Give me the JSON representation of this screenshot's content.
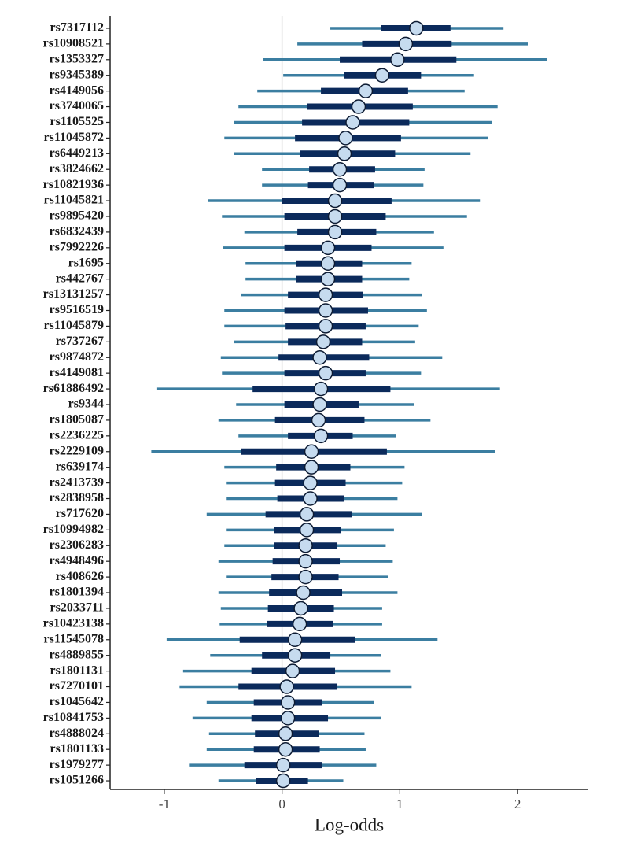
{
  "chart_data": {
    "type": "forest",
    "xlabel": "Log-odds",
    "categories": [
      "rs7317112",
      "rs10908521",
      "rs1353327",
      "rs9345389",
      "rs4149056",
      "rs3740065",
      "rs1105525",
      "rs11045872",
      "rs6449213",
      "rs3824662",
      "rs10821936",
      "rs11045821",
      "rs9895420",
      "rs6832439",
      "rs7992226",
      "rs1695",
      "rs442767",
      "rs13131257",
      "rs9516519",
      "rs11045879",
      "rs737267",
      "rs9874872",
      "rs4149081",
      "rs61886492",
      "rs9344",
      "rs1805087",
      "rs2236225",
      "rs2229109",
      "rs639174",
      "rs2413739",
      "rs2838958",
      "rs717620",
      "rs10994982",
      "rs2306283",
      "rs4948496",
      "rs408626",
      "rs1801394",
      "rs2033711",
      "rs10423138",
      "rs11545078",
      "rs4889855",
      "rs1801131",
      "rs7270101",
      "rs1045642",
      "rs10841753",
      "rs4888024",
      "rs1801133",
      "rs1979277",
      "rs1051266"
    ],
    "values": [
      1.14,
      1.05,
      0.98,
      0.85,
      0.71,
      0.65,
      0.6,
      0.54,
      0.53,
      0.49,
      0.49,
      0.45,
      0.45,
      0.45,
      0.39,
      0.39,
      0.39,
      0.37,
      0.37,
      0.37,
      0.35,
      0.32,
      0.37,
      0.33,
      0.32,
      0.31,
      0.33,
      0.25,
      0.25,
      0.24,
      0.24,
      0.21,
      0.21,
      0.2,
      0.2,
      0.2,
      0.18,
      0.16,
      0.15,
      0.11,
      0.11,
      0.09,
      0.04,
      0.05,
      0.05,
      0.03,
      0.03,
      0.01,
      0.01
    ],
    "inner_low": [
      0.84,
      0.68,
      0.49,
      0.53,
      0.33,
      0.21,
      0.17,
      0.11,
      0.15,
      0.23,
      0.22,
      0.0,
      0.02,
      0.13,
      0.02,
      0.12,
      0.12,
      0.05,
      0.02,
      0.03,
      0.05,
      -0.03,
      0.02,
      -0.25,
      0.02,
      -0.06,
      0.05,
      -0.35,
      -0.05,
      -0.06,
      -0.04,
      -0.14,
      -0.07,
      -0.07,
      -0.08,
      -0.09,
      -0.11,
      -0.12,
      -0.13,
      -0.36,
      -0.17,
      -0.26,
      -0.37,
      -0.24,
      -0.26,
      -0.23,
      -0.24,
      -0.32,
      -0.22
    ],
    "inner_high": [
      1.43,
      1.44,
      1.48,
      1.18,
      1.07,
      1.11,
      1.08,
      1.01,
      0.96,
      0.79,
      0.78,
      0.93,
      0.88,
      0.8,
      0.76,
      0.68,
      0.68,
      0.69,
      0.73,
      0.71,
      0.68,
      0.74,
      0.71,
      0.92,
      0.65,
      0.7,
      0.6,
      0.89,
      0.58,
      0.54,
      0.53,
      0.59,
      0.5,
      0.47,
      0.49,
      0.48,
      0.51,
      0.44,
      0.43,
      0.62,
      0.41,
      0.45,
      0.47,
      0.34,
      0.39,
      0.31,
      0.32,
      0.34,
      0.22
    ],
    "outer_low": [
      0.41,
      0.13,
      -0.16,
      0.01,
      -0.21,
      -0.37,
      -0.41,
      -0.49,
      -0.41,
      -0.17,
      -0.17,
      -0.63,
      -0.51,
      -0.32,
      -0.5,
      -0.31,
      -0.31,
      -0.35,
      -0.49,
      -0.49,
      -0.41,
      -0.52,
      -0.51,
      -1.06,
      -0.39,
      -0.54,
      -0.37,
      -1.11,
      -0.49,
      -0.47,
      -0.47,
      -0.64,
      -0.47,
      -0.49,
      -0.54,
      -0.47,
      -0.54,
      -0.52,
      -0.53,
      -0.98,
      -0.61,
      -0.84,
      -0.87,
      -0.64,
      -0.76,
      -0.62,
      -0.64,
      -0.79,
      -0.54
    ],
    "outer_high": [
      1.88,
      2.09,
      2.25,
      1.63,
      1.55,
      1.83,
      1.78,
      1.75,
      1.6,
      1.21,
      1.2,
      1.68,
      1.57,
      1.29,
      1.37,
      1.1,
      1.08,
      1.19,
      1.23,
      1.16,
      1.13,
      1.36,
      1.18,
      1.85,
      1.12,
      1.26,
      0.97,
      1.81,
      1.04,
      1.02,
      0.98,
      1.19,
      0.95,
      0.88,
      0.94,
      0.9,
      0.98,
      0.85,
      0.85,
      1.32,
      0.84,
      0.92,
      1.1,
      0.78,
      0.84,
      0.7,
      0.71,
      0.8,
      0.52
    ],
    "xlim": [
      -1.46,
      2.6
    ],
    "xticks": [
      -1,
      0,
      1,
      2
    ],
    "ref_line": 0,
    "point_color": "#c6dbef",
    "inner_color": "#0b2a5b",
    "outer_color": "#3b7ea1"
  }
}
